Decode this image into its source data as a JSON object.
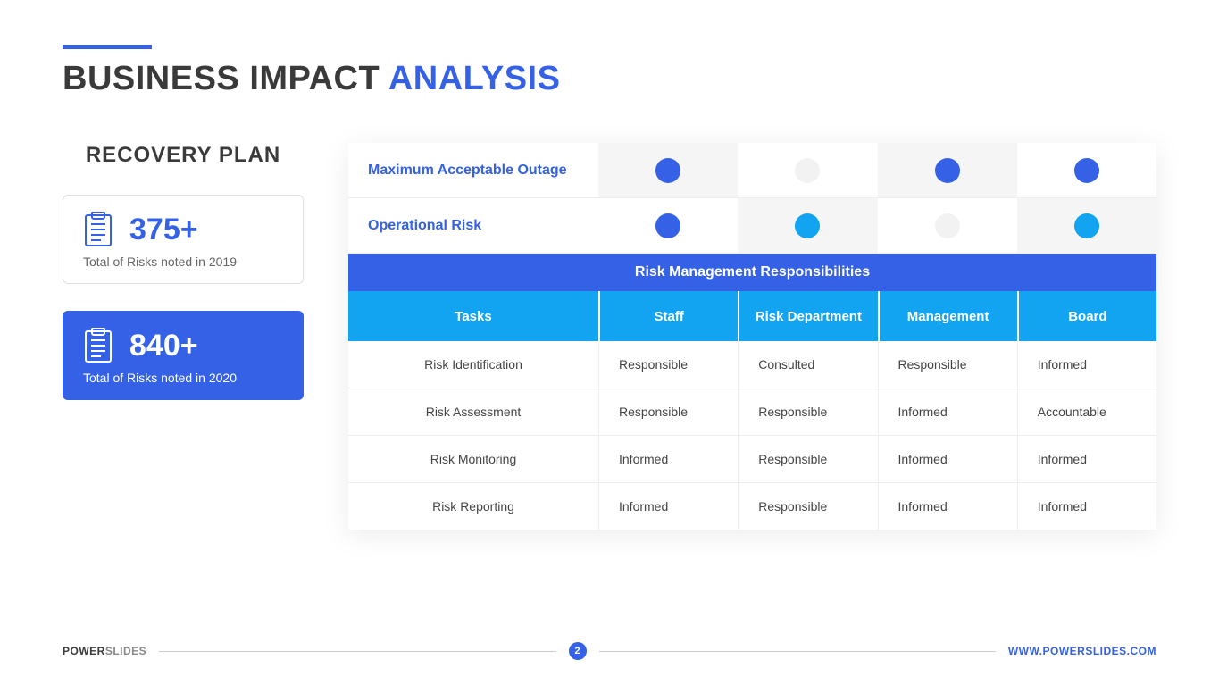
{
  "title": {
    "part1": "BUSINESS IMPACT ",
    "part2": "ANALYSIS"
  },
  "colors": {
    "primary": "#3461e6",
    "secondary": "#12a4f0",
    "faint": "#f2f2f2",
    "grayCell": "#f5f5f5"
  },
  "recovery": {
    "heading": "RECOVERY PLAN",
    "cards": [
      {
        "value": "375+",
        "desc": "Total of Risks noted in 2019",
        "variant": "white"
      },
      {
        "value": "840+",
        "desc": "Total of Risks noted in 2020",
        "variant": "blue"
      }
    ]
  },
  "indicators": {
    "rows": [
      {
        "label": "Maximum Acceptable Outage",
        "cells": [
          {
            "color": "#3461e6",
            "bg": "#f5f5f5"
          },
          {
            "color": "#f2f2f2",
            "bg": "#ffffff"
          },
          {
            "color": "#3461e6",
            "bg": "#f5f5f5"
          },
          {
            "color": "#3461e6",
            "bg": "#ffffff"
          }
        ]
      },
      {
        "label": "Operational Risk",
        "cells": [
          {
            "color": "#3461e6",
            "bg": "#ffffff"
          },
          {
            "color": "#12a4f0",
            "bg": "#f5f5f5"
          },
          {
            "color": "#f2f2f2",
            "bg": "#ffffff"
          },
          {
            "color": "#12a4f0",
            "bg": "#f5f5f5"
          }
        ]
      }
    ]
  },
  "table": {
    "sectionTitle": "Risk Management Responsibilities",
    "columns": [
      "Tasks",
      "Staff",
      "Risk Department",
      "Management",
      "Board"
    ],
    "rows": [
      [
        "Risk Identification",
        "Responsible",
        "Consulted",
        "Responsible",
        "Informed"
      ],
      [
        "Risk Assessment",
        "Responsible",
        "Responsible",
        "Informed",
        "Accountable"
      ],
      [
        "Risk Monitoring",
        "Informed",
        "Responsible",
        "Informed",
        "Informed"
      ],
      [
        "Risk Reporting",
        "Informed",
        "Responsible",
        "Informed",
        "Informed"
      ]
    ]
  },
  "footer": {
    "brand1": "POWER",
    "brand2": "SLIDES",
    "page": "2",
    "url": "WWW.POWERSLIDES.COM"
  }
}
